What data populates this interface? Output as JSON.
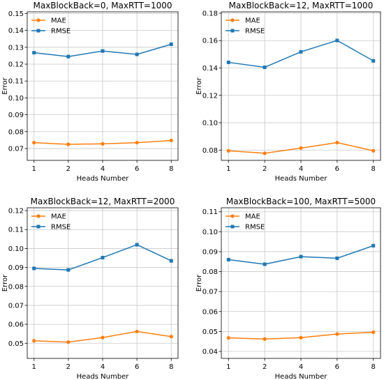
{
  "colors": {
    "mae": "#ff7f0e",
    "rmse": "#1f77b4",
    "grid": "#c8c8c8"
  },
  "chart_data": [
    {
      "type": "line",
      "title": "MaxBlockBack=0, MaxRTT=1000",
      "xlabel": "Heads Number",
      "ylabel": "Error",
      "categories": [
        "1",
        "2",
        "4",
        "6",
        "8"
      ],
      "ylim": [
        0.063,
        0.151
      ],
      "yticks": [
        "0.07",
        "0.08",
        "0.09",
        "0.10",
        "0.11",
        "0.12",
        "0.13",
        "0.14",
        "0.15"
      ],
      "grid": true,
      "legend": "top-left",
      "series": [
        {
          "name": "MAE",
          "values": [
            0.0735,
            0.0725,
            0.0728,
            0.0735,
            0.0748
          ]
        },
        {
          "name": "RMSE",
          "values": [
            0.1268,
            0.1245,
            0.1278,
            0.1258,
            0.1318
          ]
        }
      ]
    },
    {
      "type": "line",
      "title": "MaxBlockBack=12, MaxRTT=1000",
      "xlabel": "Heads Number",
      "ylabel": "Error",
      "categories": [
        "1",
        "2",
        "4",
        "6",
        "8"
      ],
      "ylim": [
        0.0725,
        0.181
      ],
      "yticks": [
        "0.08",
        "0.10",
        "0.12",
        "0.14",
        "0.16",
        "0.18"
      ],
      "grid": true,
      "legend": "top-left",
      "series": [
        {
          "name": "MAE",
          "values": [
            0.0795,
            0.0777,
            0.0815,
            0.0855,
            0.0795
          ]
        },
        {
          "name": "RMSE",
          "values": [
            0.1441,
            0.1405,
            0.1518,
            0.1601,
            0.1452
          ]
        }
      ]
    },
    {
      "type": "line",
      "title": "MaxBlockBack=12, MaxRTT=2000",
      "xlabel": "Heads Number",
      "ylabel": "Error",
      "categories": [
        "1",
        "2",
        "4",
        "6",
        "8"
      ],
      "ylim": [
        0.042,
        0.1215
      ],
      "yticks": [
        "0.05",
        "0.06",
        "0.07",
        "0.08",
        "0.09",
        "0.10",
        "0.11",
        "0.12"
      ],
      "grid": true,
      "legend": "top-left",
      "series": [
        {
          "name": "MAE",
          "values": [
            0.0513,
            0.0506,
            0.053,
            0.0562,
            0.0535
          ]
        },
        {
          "name": "RMSE",
          "values": [
            0.0895,
            0.0887,
            0.0952,
            0.102,
            0.0935
          ]
        }
      ]
    },
    {
      "type": "line",
      "title": "MaxBlockBack=100, MaxRTT=5000",
      "xlabel": "Heads Number",
      "ylabel": "Error",
      "categories": [
        "1",
        "2",
        "4",
        "6",
        "8"
      ],
      "ylim": [
        0.0365,
        0.112
      ],
      "yticks": [
        "0.04",
        "0.05",
        "0.06",
        "0.07",
        "0.08",
        "0.09",
        "0.10",
        "0.11"
      ],
      "grid": true,
      "legend": "top-left",
      "series": [
        {
          "name": "MAE",
          "values": [
            0.0468,
            0.0462,
            0.0469,
            0.0487,
            0.0496
          ]
        },
        {
          "name": "RMSE",
          "values": [
            0.086,
            0.0837,
            0.0875,
            0.0867,
            0.093
          ]
        }
      ]
    }
  ]
}
